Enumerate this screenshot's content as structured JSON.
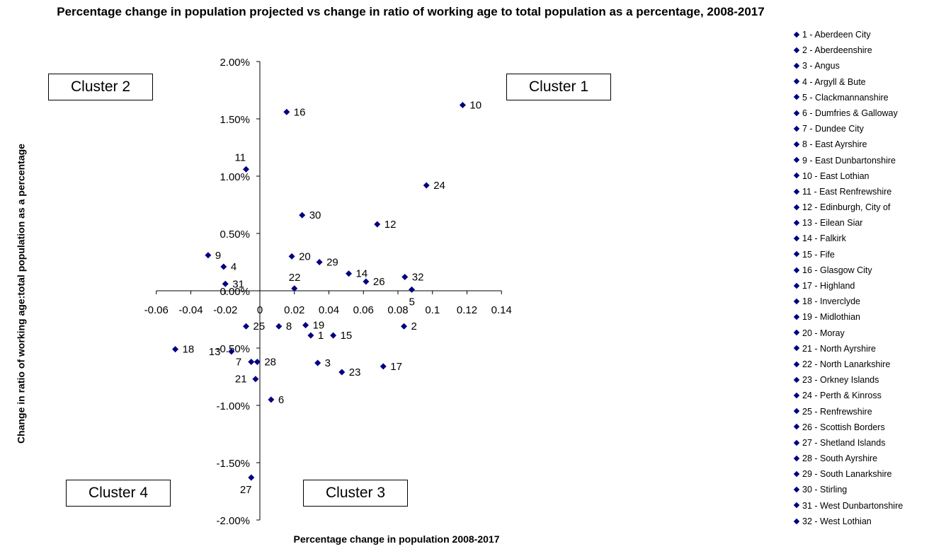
{
  "chart_data": {
    "type": "scatter",
    "title": "Percentage change in population projected vs change in ratio of working age to total population as a percentage, 2008-2017",
    "xlabel": "Percentage change in population 2008-2017",
    "ylabel": "Change in ratio of working age:total population as a percentage",
    "xlim": [
      -0.06,
      0.14
    ],
    "ylim": [
      -2.0,
      2.0
    ],
    "x_ticks": [
      "-0.06",
      "-0.04",
      "-0.02",
      "0",
      "0.02",
      "0.04",
      "0.06",
      "0.08",
      "0.1",
      "0.12",
      "0.14"
    ],
    "y_ticks": [
      "2.00%",
      "1.50%",
      "1.00%",
      "0.50%",
      "0.00%",
      "-0.50%",
      "-1.00%",
      "-1.50%",
      "-2.00%"
    ],
    "marker_color": "#000080",
    "legend_position": "right",
    "points": [
      {
        "id": "1",
        "name": "1 - Aberdeen City",
        "x": 0.0295,
        "y": -0.39
      },
      {
        "id": "2",
        "name": "2 - Aberdeenshire",
        "x": 0.0835,
        "y": -0.31
      },
      {
        "id": "3",
        "name": "3 - Angus",
        "x": 0.0335,
        "y": -0.63
      },
      {
        "id": "4",
        "name": "4 - Argyll & Bute",
        "x": -0.021,
        "y": 0.21
      },
      {
        "id": "5",
        "name": "5 - Clackmannanshire",
        "x": 0.088,
        "y": 0.01
      },
      {
        "id": "6",
        "name": "6 - Dumfries & Galloway",
        "x": 0.0065,
        "y": -0.95
      },
      {
        "id": "7",
        "name": "7 - Dundee City",
        "x": -0.005,
        "y": -0.62
      },
      {
        "id": "8",
        "name": "8 - East Ayrshire",
        "x": 0.011,
        "y": -0.31
      },
      {
        "id": "9",
        "name": "9 - East Dunbartonshire",
        "x": -0.03,
        "y": 0.31
      },
      {
        "id": "10",
        "name": "10 - East Lothian",
        "x": 0.1175,
        "y": 1.62
      },
      {
        "id": "11",
        "name": "11 - East Renfrewshire",
        "x": -0.008,
        "y": 1.06
      },
      {
        "id": "12",
        "name": "12 - Edinburgh, City of",
        "x": 0.068,
        "y": 0.58
      },
      {
        "id": "13",
        "name": "13 - Eilean Siar",
        "x": -0.0165,
        "y": -0.53
      },
      {
        "id": "14",
        "name": "14 - Falkirk",
        "x": 0.0515,
        "y": 0.15
      },
      {
        "id": "15",
        "name": "15 - Fife",
        "x": 0.0425,
        "y": -0.39
      },
      {
        "id": "16",
        "name": "16 - Glasgow City",
        "x": 0.0155,
        "y": 1.56
      },
      {
        "id": "17",
        "name": "17 - Highland",
        "x": 0.0715,
        "y": -0.66
      },
      {
        "id": "18",
        "name": "18 - Inverclyde",
        "x": -0.049,
        "y": -0.51
      },
      {
        "id": "19",
        "name": "19 - Midlothian",
        "x": 0.0265,
        "y": -0.3
      },
      {
        "id": "20",
        "name": "20 - Moray",
        "x": 0.0185,
        "y": 0.3
      },
      {
        "id": "21",
        "name": "21 - North Ayrshire",
        "x": -0.0025,
        "y": -0.77
      },
      {
        "id": "22",
        "name": "22 - North Lanarkshire",
        "x": 0.02,
        "y": 0.02
      },
      {
        "id": "23",
        "name": "23 - Orkney Islands",
        "x": 0.0475,
        "y": -0.71
      },
      {
        "id": "24",
        "name": "24 - Perth & Kinross",
        "x": 0.0965,
        "y": 0.92
      },
      {
        "id": "25",
        "name": "25 - Renfrewshire",
        "x": -0.008,
        "y": -0.31
      },
      {
        "id": "26",
        "name": "26 - Scottish Borders",
        "x": 0.0615,
        "y": 0.08
      },
      {
        "id": "27",
        "name": "27 - Shetland Islands",
        "x": -0.005,
        "y": -1.63
      },
      {
        "id": "28",
        "name": "28 - South Ayrshire",
        "x": -0.0015,
        "y": -0.62
      },
      {
        "id": "29",
        "name": "29 - South Lanarkshire",
        "x": 0.0345,
        "y": 0.25
      },
      {
        "id": "30",
        "name": "30 - Stirling",
        "x": 0.0245,
        "y": 0.66
      },
      {
        "id": "31",
        "name": "31 - West Dunbartonshire",
        "x": -0.02,
        "y": 0.06
      },
      {
        "id": "32",
        "name": "32 - West Lothian",
        "x": 0.084,
        "y": 0.12
      }
    ],
    "annotations": [
      {
        "id": "cluster-1",
        "text": "Cluster 1"
      },
      {
        "id": "cluster-2",
        "text": "Cluster 2"
      },
      {
        "id": "cluster-3",
        "text": "Cluster 3"
      },
      {
        "id": "cluster-4",
        "text": "Cluster 4"
      }
    ]
  }
}
